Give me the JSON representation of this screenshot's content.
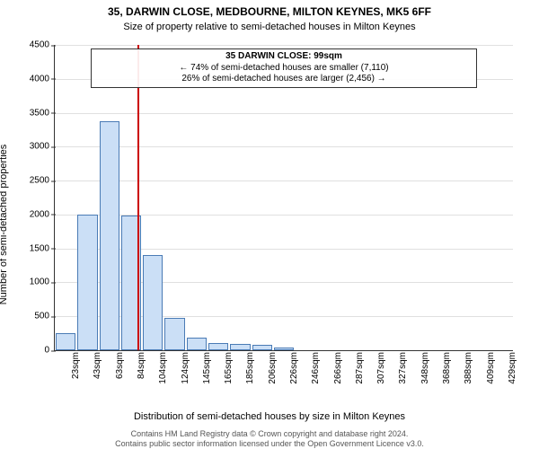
{
  "title": "35, DARWIN CLOSE, MEDBOURNE, MILTON KEYNES, MK5 6FF",
  "subtitle": "Size of property relative to semi-detached houses in Milton Keynes",
  "chart": {
    "type": "histogram",
    "x_labels": [
      "23sqm",
      "43sqm",
      "63sqm",
      "84sqm",
      "104sqm",
      "124sqm",
      "145sqm",
      "165sqm",
      "185sqm",
      "206sqm",
      "226sqm",
      "246sqm",
      "266sqm",
      "287sqm",
      "307sqm",
      "327sqm",
      "348sqm",
      "368sqm",
      "388sqm",
      "409sqm",
      "429sqm"
    ],
    "values": [
      250,
      2000,
      3370,
      1990,
      1400,
      480,
      190,
      110,
      90,
      80,
      40,
      0,
      0,
      0,
      0,
      0,
      0,
      0,
      0,
      0,
      0
    ],
    "y_ticks": [
      0,
      500,
      1000,
      1500,
      2000,
      2500,
      3000,
      3500,
      4000,
      4500
    ],
    "ylim": [
      0,
      4500
    ],
    "bar_fill": "#cbdff6",
    "bar_border": "#4a7bb5",
    "background_color": "#ffffff",
    "grid_color": "#e0e0e0",
    "axis_color": "#333333",
    "reference_line": {
      "x_value": "99sqm",
      "x_position_index": 3.8,
      "color": "#cc0000"
    },
    "annotation": {
      "line1": "35 DARWIN CLOSE: 99sqm",
      "line2": "← 74% of semi-detached houses are smaller (7,110)",
      "line3": "26% of semi-detached houses are larger (2,456) →"
    },
    "x_axis_label": "Distribution of semi-detached houses by size in Milton Keynes",
    "y_axis_label": "Number of semi-detached properties",
    "x_tick_fontsize": 10,
    "y_tick_fontsize": 10,
    "axis_label_fontsize": 11,
    "title_fontsize": 12,
    "subtitle_fontsize": 11,
    "annotation_fontsize": 10
  },
  "footer": {
    "line1": "Contains HM Land Registry data © Crown copyright and database right 2024.",
    "line2": "Contains public sector information licensed under the Open Government Licence v3.0.",
    "fontsize": 9
  }
}
